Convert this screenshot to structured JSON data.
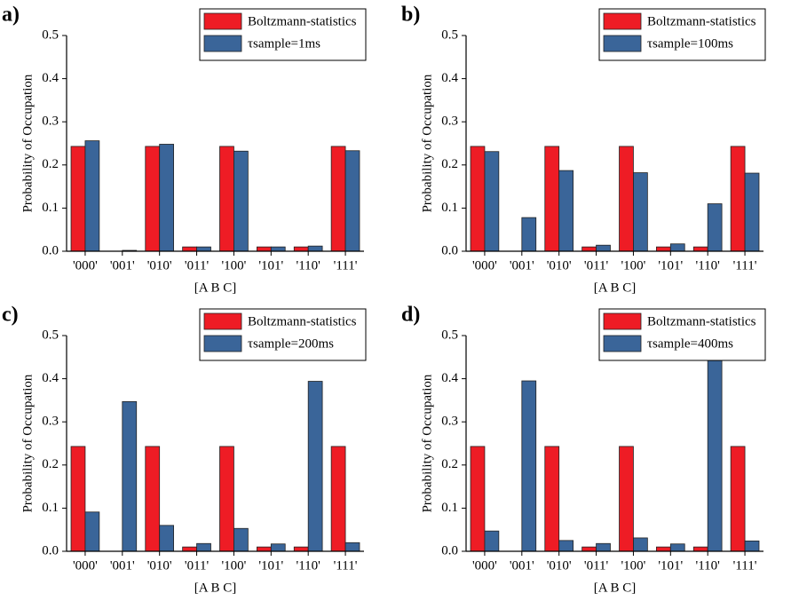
{
  "chart_data": [
    {
      "type": "bar",
      "panel_label": "a)",
      "xlabel": "[A B C]",
      "ylabel": "Probability of Occupation",
      "categories": [
        "'000'",
        "'001'",
        "'010'",
        "'011'",
        "'100'",
        "'101'",
        "'110'",
        "'111'"
      ],
      "series": [
        {
          "name": "Boltzmann-statistics",
          "color": "#ee1c25",
          "values": [
            0.243,
            0,
            0.243,
            0.01,
            0.243,
            0.01,
            0.01,
            0.243
          ]
        },
        {
          "name": "τsample=1ms",
          "color": "#3a6599",
          "values": [
            0.256,
            0.002,
            0.248,
            0.01,
            0.232,
            0.01,
            0.012,
            0.233
          ]
        }
      ],
      "ylim": [
        0,
        0.5
      ],
      "yticks": [
        {
          "value": 0,
          "label": "0.0"
        },
        0.1,
        0.2,
        0.3,
        0.4,
        0.5
      ],
      "legend": "upper right"
    },
    {
      "type": "bar",
      "panel_label": "b)",
      "xlabel": "[A B C]",
      "ylabel": "Probability of Occupation",
      "categories": [
        "'000'",
        "'001'",
        "'010'",
        "'011'",
        "'100'",
        "'101'",
        "'110'",
        "'111'"
      ],
      "series": [
        {
          "name": "Boltzmann-statistics",
          "color": "#ee1c25",
          "values": [
            0.243,
            0,
            0.243,
            0.01,
            0.243,
            0.01,
            0.01,
            0.243
          ]
        },
        {
          "name": "τsample=100ms",
          "color": "#3a6599",
          "values": [
            0.231,
            0.078,
            0.187,
            0.014,
            0.182,
            0.017,
            0.11,
            0.181
          ]
        }
      ],
      "ylim": [
        0,
        0.5
      ],
      "yticks": [
        {
          "value": 0,
          "label": "0.0"
        },
        0.1,
        0.2,
        0.3,
        0.4,
        0.5
      ],
      "legend": "upper right"
    },
    {
      "type": "bar",
      "panel_label": "c)",
      "xlabel": "[A B C]",
      "ylabel": "Probability of Occupation",
      "categories": [
        "'000'",
        "'001'",
        "'010'",
        "'011'",
        "'100'",
        "'101'",
        "'110'",
        "'111'"
      ],
      "series": [
        {
          "name": "Boltzmann-statistics",
          "color": "#ee1c25",
          "values": [
            0.243,
            0,
            0.243,
            0.01,
            0.243,
            0.01,
            0.01,
            0.243
          ]
        },
        {
          "name": "τsample=200ms",
          "color": "#3a6599",
          "values": [
            0.091,
            0.347,
            0.06,
            0.018,
            0.053,
            0.017,
            0.394,
            0.02
          ]
        }
      ],
      "ylim": [
        0,
        0.5
      ],
      "yticks": [
        {
          "value": 0,
          "label": "0.0"
        },
        0.1,
        0.2,
        0.3,
        0.4,
        0.5
      ],
      "legend": "upper right"
    },
    {
      "type": "bar",
      "panel_label": "d)",
      "xlabel": "[A B C]",
      "ylabel": "Probability of Occupation",
      "categories": [
        "'000'",
        "'001'",
        "'010'",
        "'011'",
        "'100'",
        "'101'",
        "'110'",
        "'111'"
      ],
      "series": [
        {
          "name": "Boltzmann-statistics",
          "color": "#ee1c25",
          "values": [
            0.243,
            0,
            0.243,
            0.01,
            0.243,
            0.01,
            0.01,
            0.243
          ]
        },
        {
          "name": "τsample=400ms",
          "color": "#3a6599",
          "values": [
            0.047,
            0.395,
            0.025,
            0.018,
            0.031,
            0.017,
            0.442,
            0.024
          ]
        }
      ],
      "ylim": [
        0,
        0.5
      ],
      "yticks": [
        {
          "value": 0,
          "label": "0.0"
        },
        0.1,
        0.2,
        0.3,
        0.4,
        0.5
      ],
      "legend": "upper right"
    }
  ]
}
